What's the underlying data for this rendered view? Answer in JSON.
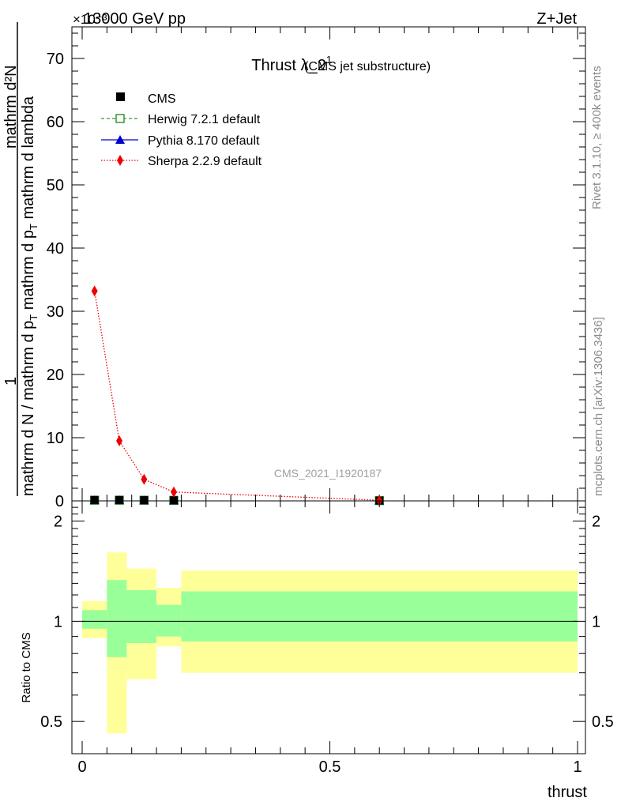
{
  "header": {
    "exponent": "×10⁻³",
    "left": "13000 GeV pp",
    "right": "Z+Jet"
  },
  "side": {
    "rivet": "Rivet 3.1.10, ≥ 400k events",
    "mcplots": "mcplots.cern.ch [arXiv:1306.3436]"
  },
  "chart_data": [
    {
      "type": "line",
      "title": "Thrust λ_2",
      "title_sup": "1",
      "subtitle": "(CMS jet substructure)",
      "watermark": "CMS_2021_I1920187",
      "ylabel_numerator": "1",
      "ylabel_parts": [
        "mathrm d N / mathrm d p",
        "T",
        "mathrm d p",
        "T",
        "mathrm d lambda"
      ],
      "ylabel_top": "mathrm d²N",
      "xlim": [
        0,
        1
      ],
      "ylim": [
        0,
        75
      ],
      "yticks": [
        0,
        10,
        20,
        30,
        40,
        50,
        60,
        70
      ],
      "legend_position": "top-left",
      "series": [
        {
          "name": "CMS",
          "style": "data",
          "color": "#000000",
          "x": [
            0.025,
            0.075,
            0.125,
            0.185,
            0.6
          ],
          "y": [
            0.15,
            0.15,
            0.12,
            0.1,
            0.05
          ]
        },
        {
          "name": "Herwig 7.2.1 default",
          "style": "dashed-open-square",
          "color": "#339933",
          "x": [
            0.025,
            0.075,
            0.125,
            0.185,
            0.6
          ],
          "y": [
            0.1,
            0.1,
            0.1,
            0.08,
            0.05
          ]
        },
        {
          "name": "Pythia 8.170 default",
          "style": "solid-triangle",
          "color": "#0000cc",
          "x": [
            0.025,
            0.075,
            0.125,
            0.185,
            0.6
          ],
          "y": [
            0.12,
            0.12,
            0.1,
            0.08,
            0.04
          ]
        },
        {
          "name": "Sherpa 2.2.9 default",
          "style": "dotted-diamond",
          "color": "#ee0000",
          "x": [
            0.025,
            0.075,
            0.125,
            0.185,
            0.6
          ],
          "y": [
            33.2,
            9.5,
            3.4,
            1.4,
            0.1
          ]
        }
      ]
    },
    {
      "type": "area",
      "ylabel": "Ratio to CMS",
      "xlabel": "thrust",
      "xlim": [
        0,
        1
      ],
      "xticks": [
        0,
        0.5,
        1
      ],
      "xtick_labels": [
        "0",
        "0.5",
        "1"
      ],
      "ylim": [
        0.4,
        2.3
      ],
      "scale": "log",
      "yticks": [
        0.5,
        1,
        2
      ],
      "ytick_labels": [
        "0.5",
        "1",
        "2"
      ],
      "reference_line": 1,
      "bins": [
        {
          "x0": 0.0,
          "x1": 0.05,
          "inner": [
            0.95,
            1.08
          ],
          "outer": [
            0.89,
            1.15
          ]
        },
        {
          "x0": 0.05,
          "x1": 0.09,
          "inner": [
            0.78,
            1.33
          ],
          "outer": [
            0.46,
            1.61
          ]
        },
        {
          "x0": 0.09,
          "x1": 0.15,
          "inner": [
            0.86,
            1.24
          ],
          "outer": [
            0.67,
            1.44
          ]
        },
        {
          "x0": 0.15,
          "x1": 0.2,
          "inner": [
            0.9,
            1.12
          ],
          "outer": [
            0.84,
            1.26
          ]
        },
        {
          "x0": 0.2,
          "x1": 1.0,
          "inner": [
            0.87,
            1.23
          ],
          "outer": [
            0.7,
            1.42
          ]
        }
      ]
    }
  ]
}
